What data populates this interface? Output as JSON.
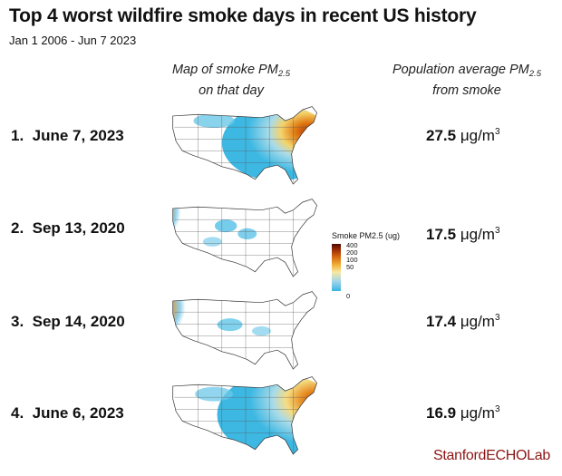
{
  "chart_data": {
    "type": "table",
    "title": "Top 4 worst wildfire smoke days in recent US history",
    "subtitle": "Jan 1 2006 - Jun 7 2023",
    "columns": {
      "map_heading": "Map of smoke PM",
      "map_heading_sub": "2.5",
      "map_heading_line2": "on that day",
      "pop_heading": "Population average PM",
      "pop_heading_sub": "2.5",
      "pop_heading_line2": "from smoke"
    },
    "rows": [
      {
        "rank": "1.",
        "date": "June 7, 2023",
        "value": 27.5,
        "value_text": "27.5",
        "unit": "μg/m",
        "unit_exp": "3"
      },
      {
        "rank": "2.",
        "date": "Sep 13, 2020",
        "value": 17.5,
        "value_text": "17.5",
        "unit": "μg/m",
        "unit_exp": "3"
      },
      {
        "rank": "3.",
        "date": "Sep 14, 2020",
        "value": 17.4,
        "value_text": "17.4",
        "unit": "μg/m",
        "unit_exp": "3"
      },
      {
        "rank": "4.",
        "date": "June 6, 2023",
        "value": 16.9,
        "value_text": "16.9",
        "unit": "μg/m",
        "unit_exp": "3"
      }
    ],
    "legend": {
      "title": "Smoke PM2.5 (ug)",
      "ticks": [
        "400",
        "200",
        "100",
        "50",
        "0"
      ],
      "colors": [
        "#4a0c02",
        "#9b2a06",
        "#d76a10",
        "#f2b23a",
        "#f7e8a2",
        "#9fd4ea",
        "#36b4e2"
      ]
    }
  },
  "brand": {
    "part1": "Stanford",
    "part2": "ECHO",
    "part3": "Lab",
    "color": "#8c1515"
  }
}
